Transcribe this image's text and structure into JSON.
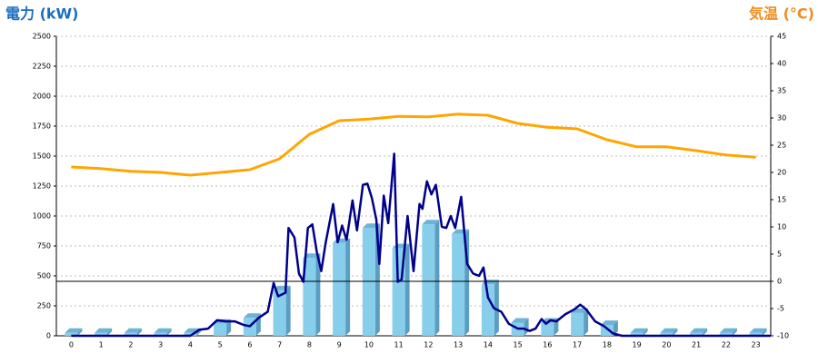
{
  "chart_data": {
    "type": "bar",
    "title": "電力 (kW)",
    "y2_title": "気温 (°C)",
    "categories": [
      "0",
      "1",
      "2",
      "3",
      "4",
      "5",
      "6",
      "7",
      "8",
      "9",
      "10",
      "11",
      "12",
      "13",
      "14",
      "15",
      "16",
      "17",
      "18",
      "19",
      "20",
      "21",
      "22",
      "23"
    ],
    "xlim": [
      -0.5,
      23.5
    ],
    "ylim": [
      0,
      2500
    ],
    "yticks": [
      0,
      250,
      500,
      750,
      1000,
      1250,
      1500,
      1750,
      2000,
      2250,
      2500
    ],
    "y2lim": [
      -10,
      45
    ],
    "y2ticks": [
      -10,
      -5,
      0,
      5,
      10,
      15,
      20,
      25,
      30,
      35,
      40,
      45
    ],
    "y2_baseline": 0,
    "grid": true,
    "bars": {
      "color": "#87ceeb",
      "values": [
        25,
        25,
        25,
        25,
        25,
        100,
        150,
        380,
        650,
        775,
        900,
        730,
        930,
        850,
        430,
        110,
        110,
        190,
        90,
        25,
        25,
        25,
        25,
        25
      ]
    },
    "line": {
      "color": "#00008b",
      "x": [
        0,
        4,
        4.3,
        4.6,
        4.9,
        5.2,
        5.5,
        5.8,
        6.0,
        6.3,
        6.6,
        6.8,
        6.95,
        7.2,
        7.3,
        7.5,
        7.65,
        7.8,
        7.95,
        8.1,
        8.25,
        8.4,
        8.55,
        8.8,
        8.95,
        9.1,
        9.25,
        9.45,
        9.6,
        9.8,
        9.95,
        10.1,
        10.25,
        10.35,
        10.5,
        10.65,
        10.85,
        10.97,
        11.1,
        11.3,
        11.5,
        11.7,
        11.8,
        11.95,
        12.1,
        12.25,
        12.45,
        12.6,
        12.75,
        12.9,
        13.1,
        13.3,
        13.5,
        13.7,
        13.85,
        14.0,
        14.2,
        14.45,
        14.7,
        15.0,
        15.2,
        15.4,
        15.6,
        15.8,
        15.95,
        16.1,
        16.3,
        16.6,
        16.9,
        17.1,
        17.3,
        17.6,
        17.9,
        18.2,
        18.5,
        23.5
      ],
      "values": [
        0,
        0,
        50,
        60,
        130,
        120,
        120,
        90,
        80,
        150,
        200,
        440,
        330,
        360,
        900,
        820,
        520,
        450,
        900,
        930,
        700,
        540,
        780,
        1100,
        780,
        920,
        800,
        1130,
        880,
        1260,
        1270,
        1150,
        970,
        600,
        1170,
        940,
        1520,
        450,
        470,
        1000,
        540,
        1100,
        1060,
        1290,
        1180,
        1260,
        910,
        900,
        1000,
        900,
        1160,
        600,
        520,
        500,
        570,
        320,
        230,
        200,
        100,
        60,
        60,
        40,
        60,
        140,
        100,
        130,
        120,
        180,
        220,
        260,
        220,
        120,
        80,
        20,
        0,
        0
      ]
    },
    "temperature": {
      "color": "#ffa500",
      "axis": "y2",
      "values": [
        21,
        20.7,
        20.2,
        20,
        19.5,
        20,
        20.5,
        22.5,
        27,
        29.5,
        29.8,
        30.3,
        30.2,
        30.7,
        30.5,
        29,
        28.3,
        28,
        26,
        24.7,
        24.7,
        24,
        23.2,
        22.8
      ]
    }
  }
}
